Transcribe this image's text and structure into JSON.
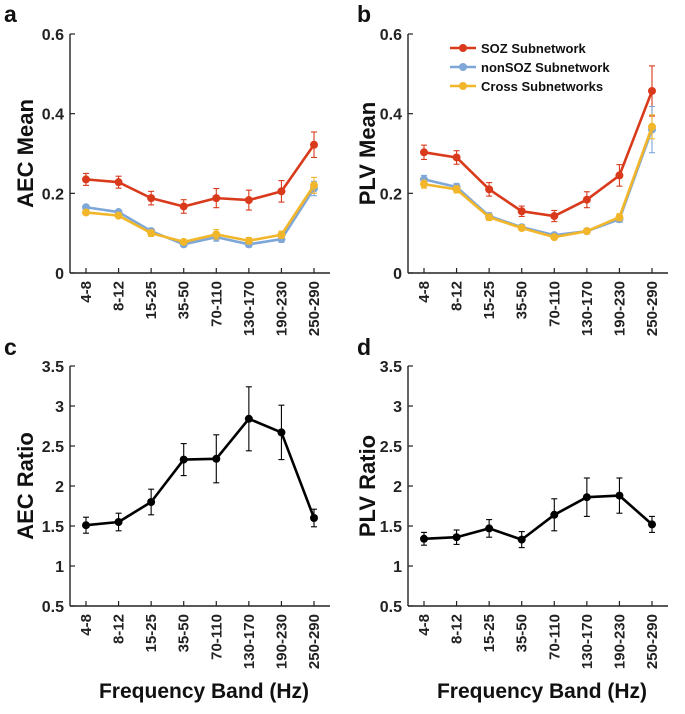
{
  "chart_data": [
    {
      "id": "a",
      "panel_label": "a",
      "type": "line",
      "ylabel": "AEC Mean",
      "xlabel": "",
      "ylim": [
        0,
        0.6
      ],
      "yticks": [
        "0",
        "0.2",
        "0.4",
        "0.6"
      ],
      "categories": [
        "4-8",
        "8-12",
        "15-25",
        "35-50",
        "70-110",
        "130-170",
        "190-230",
        "250-290"
      ],
      "series": [
        {
          "name": "SOZ Subnetwork",
          "color": "#d93a1b",
          "values": [
            0.235,
            0.228,
            0.188,
            0.167,
            0.188,
            0.183,
            0.205,
            0.322
          ],
          "errors": [
            0.015,
            0.015,
            0.017,
            0.017,
            0.024,
            0.025,
            0.027,
            0.032
          ]
        },
        {
          "name": "nonSOZ Subnetwork",
          "color": "#7ea7d8",
          "values": [
            0.165,
            0.153,
            0.105,
            0.072,
            0.09,
            0.072,
            0.085,
            0.212
          ],
          "errors": [
            0.006,
            0.006,
            0.007,
            0.006,
            0.01,
            0.007,
            0.008,
            0.018
          ]
        },
        {
          "name": "Cross Subnetworks",
          "color": "#f2b62a",
          "values": [
            0.152,
            0.144,
            0.1,
            0.078,
            0.097,
            0.081,
            0.096,
            0.22
          ],
          "errors": [
            0.006,
            0.006,
            0.008,
            0.006,
            0.012,
            0.008,
            0.009,
            0.02
          ]
        }
      ]
    },
    {
      "id": "b",
      "panel_label": "b",
      "type": "line",
      "ylabel": "PLV Mean",
      "xlabel": "",
      "ylim": [
        0,
        0.6
      ],
      "yticks": [
        "0",
        "0.2",
        "0.4",
        "0.6"
      ],
      "categories": [
        "4-8",
        "8-12",
        "15-25",
        "35-50",
        "70-110",
        "130-170",
        "190-230",
        "250-290"
      ],
      "legend": {
        "position": "top-right"
      },
      "series": [
        {
          "name": "SOZ Subnetwork",
          "color": "#d93a1b",
          "values": [
            0.303,
            0.29,
            0.21,
            0.155,
            0.143,
            0.184,
            0.245,
            0.457
          ],
          "errors": [
            0.018,
            0.017,
            0.017,
            0.013,
            0.014,
            0.02,
            0.027,
            0.063
          ]
        },
        {
          "name": "nonSOZ Subnetwork",
          "color": "#7ea7d8",
          "values": [
            0.235,
            0.216,
            0.143,
            0.115,
            0.095,
            0.105,
            0.135,
            0.36
          ],
          "errors": [
            0.01,
            0.009,
            0.008,
            0.006,
            0.006,
            0.006,
            0.008,
            0.058
          ]
        },
        {
          "name": "Cross Subnetworks",
          "color": "#f2b62a",
          "values": [
            0.223,
            0.21,
            0.14,
            0.113,
            0.09,
            0.105,
            0.14,
            0.367
          ],
          "errors": [
            0.01,
            0.009,
            0.008,
            0.006,
            0.006,
            0.006,
            0.009,
            0.03
          ]
        }
      ]
    },
    {
      "id": "c",
      "panel_label": "c",
      "type": "line",
      "ylabel": "AEC Ratio",
      "xlabel": "Frequency Band (Hz)",
      "ylim": [
        0.5,
        3.5
      ],
      "yticks": [
        "0.5",
        "1",
        "1.5",
        "2",
        "2.5",
        "3",
        "3.5"
      ],
      "categories": [
        "4-8",
        "8-12",
        "15-25",
        "35-50",
        "70-110",
        "130-170",
        "190-230",
        "250-290"
      ],
      "series": [
        {
          "name": "AEC Ratio",
          "color": "#000000",
          "values": [
            1.51,
            1.55,
            1.8,
            2.33,
            2.34,
            2.84,
            2.67,
            1.6
          ],
          "errors": [
            0.1,
            0.11,
            0.16,
            0.2,
            0.3,
            0.4,
            0.34,
            0.11
          ]
        }
      ]
    },
    {
      "id": "d",
      "panel_label": "d",
      "type": "line",
      "ylabel": "PLV Ratio",
      "xlabel": "Frequency Band (Hz)",
      "ylim": [
        0.5,
        3.5
      ],
      "yticks": [
        "0.5",
        "1",
        "1.5",
        "2",
        "2.5",
        "3",
        "3.5"
      ],
      "categories": [
        "4-8",
        "8-12",
        "15-25",
        "35-50",
        "70-110",
        "130-170",
        "190-230",
        "250-290"
      ],
      "series": [
        {
          "name": "PLV Ratio",
          "color": "#000000",
          "values": [
            1.34,
            1.36,
            1.47,
            1.33,
            1.64,
            1.86,
            1.88,
            1.52
          ],
          "errors": [
            0.08,
            0.09,
            0.11,
            0.1,
            0.2,
            0.24,
            0.22,
            0.1
          ]
        }
      ]
    }
  ]
}
